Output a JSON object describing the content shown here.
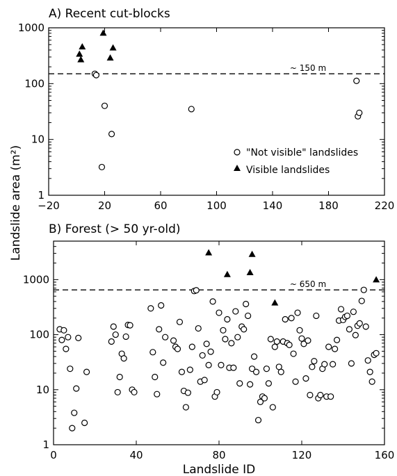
{
  "figure": {
    "ylabel": "Landslide area (m²)",
    "xlabel": "Landslide ID"
  },
  "chart_data": [
    {
      "type": "scatter",
      "title": "A) Recent cut-blocks",
      "yscale": "log",
      "xlim": [
        -20,
        220
      ],
      "ylim": [
        1,
        1000
      ],
      "xticks": [
        -20,
        20,
        60,
        100,
        140,
        180,
        220
      ],
      "xtick_labels": [
        "−20",
        "20",
        "60",
        "100",
        "140",
        "180",
        "220"
      ],
      "yticks": [
        1,
        10,
        100,
        1000
      ],
      "ytick_labels": [
        "1",
        "10",
        "100",
        "1000"
      ],
      "threshold": {
        "y": 150,
        "label": "~ 150 m"
      },
      "legend": {
        "position": "lower-right"
      },
      "series": [
        {
          "name": "\"Not visible\" landslides",
          "marker": "open-circle",
          "points": [
            [
              13,
              150
            ],
            [
              14,
              142
            ],
            [
              18,
              3.2
            ],
            [
              20,
              40
            ],
            [
              25,
              12.5
            ],
            [
              82,
              35
            ],
            [
              200,
              112
            ],
            [
              201,
              26
            ],
            [
              202,
              30
            ]
          ]
        },
        {
          "name": "Visible landslides",
          "marker": "filled-triangle",
          "points": [
            [
              2,
              340
            ],
            [
              3,
              270
            ],
            [
              4,
              460
            ],
            [
              19,
              810
            ],
            [
              24,
              290
            ],
            [
              26,
              440
            ]
          ]
        }
      ]
    },
    {
      "type": "scatter",
      "title": "B) Forest (> 50 yr-old)",
      "yscale": "log",
      "xlim": [
        0,
        160
      ],
      "ylim": [
        1,
        5000
      ],
      "xticks": [
        0,
        40,
        80,
        120,
        160
      ],
      "xtick_labels": [
        "0",
        "40",
        "80",
        "120",
        "160"
      ],
      "yticks": [
        1,
        10,
        100,
        1000
      ],
      "ytick_labels": [
        "1",
        "10",
        "100",
        "1000"
      ],
      "threshold": {
        "y": 650,
        "label": "~ 650 m"
      },
      "series": [
        {
          "name": "\"Not visible\" landslides",
          "marker": "open-circle",
          "points": [
            [
              3,
              125
            ],
            [
              4,
              80
            ],
            [
              5,
              120
            ],
            [
              6,
              55
            ],
            [
              7,
              90
            ],
            [
              8,
              24
            ],
            [
              9,
              2
            ],
            [
              10,
              3.8
            ],
            [
              11,
              10.5
            ],
            [
              12,
              87
            ],
            [
              15,
              2.5
            ],
            [
              16,
              21
            ],
            [
              28,
              75
            ],
            [
              29,
              140
            ],
            [
              30,
              100
            ],
            [
              31,
              9
            ],
            [
              32,
              17
            ],
            [
              33,
              45
            ],
            [
              34,
              37
            ],
            [
              35,
              92
            ],
            [
              36,
              150
            ],
            [
              37,
              148
            ],
            [
              38,
              10
            ],
            [
              39,
              9
            ],
            [
              47,
              300
            ],
            [
              48,
              48
            ],
            [
              49,
              17
            ],
            [
              50,
              8.3
            ],
            [
              51,
              125
            ],
            [
              52,
              340
            ],
            [
              53,
              31
            ],
            [
              54,
              90
            ],
            [
              58,
              78
            ],
            [
              59,
              60
            ],
            [
              60,
              55
            ],
            [
              61,
              170
            ],
            [
              62,
              21
            ],
            [
              63,
              9.5
            ],
            [
              64,
              4.8
            ],
            [
              65,
              8.8
            ],
            [
              66,
              23
            ],
            [
              67,
              60
            ],
            [
              68,
              620
            ],
            [
              69,
              640
            ],
            [
              70,
              130
            ],
            [
              71,
              14
            ],
            [
              72,
              42
            ],
            [
              73,
              15
            ],
            [
              74,
              68
            ],
            [
              75,
              28
            ],
            [
              76,
              49
            ],
            [
              77,
              400
            ],
            [
              78,
              7.5
            ],
            [
              79,
              9
            ],
            [
              80,
              250
            ],
            [
              81,
              28
            ],
            [
              82,
              120
            ],
            [
              83,
              83
            ],
            [
              84,
              190
            ],
            [
              85,
              25
            ],
            [
              86,
              70
            ],
            [
              87,
              25
            ],
            [
              88,
              265
            ],
            [
              89,
              90
            ],
            [
              90,
              13
            ],
            [
              91,
              140
            ],
            [
              92,
              125
            ],
            [
              93,
              360
            ],
            [
              94,
              220
            ],
            [
              95,
              12.5
            ],
            [
              96,
              24
            ],
            [
              97,
              40
            ],
            [
              98,
              21
            ],
            [
              99,
              2.8
            ],
            [
              100,
              6
            ],
            [
              101,
              7.5
            ],
            [
              102,
              7
            ],
            [
              103,
              24
            ],
            [
              104,
              13
            ],
            [
              105,
              83
            ],
            [
              106,
              4.8
            ],
            [
              107,
              60
            ],
            [
              108,
              75
            ],
            [
              109,
              26
            ],
            [
              110,
              21
            ],
            [
              111,
              75
            ],
            [
              112,
              190
            ],
            [
              113,
              70
            ],
            [
              114,
              65
            ],
            [
              115,
              200
            ],
            [
              116,
              45
            ],
            [
              117,
              14
            ],
            [
              118,
              250
            ],
            [
              119,
              120
            ],
            [
              120,
              85
            ],
            [
              121,
              68
            ],
            [
              122,
              16
            ],
            [
              123,
              78
            ],
            [
              124,
              8
            ],
            [
              125,
              26
            ],
            [
              126,
              33
            ],
            [
              127,
              220
            ],
            [
              128,
              7
            ],
            [
              129,
              8
            ],
            [
              130,
              24
            ],
            [
              131,
              29
            ],
            [
              132,
              7.5
            ],
            [
              133,
              60
            ],
            [
              134,
              7.5
            ],
            [
              135,
              29
            ],
            [
              136,
              55
            ],
            [
              137,
              80
            ],
            [
              138,
              180
            ],
            [
              139,
              290
            ],
            [
              140,
              185
            ],
            [
              141,
              210
            ],
            [
              142,
              220
            ],
            [
              143,
              125
            ],
            [
              144,
              30
            ],
            [
              145,
              260
            ],
            [
              146,
              98
            ],
            [
              147,
              145
            ],
            [
              148,
              160
            ],
            [
              149,
              410
            ],
            [
              150,
              650
            ],
            [
              151,
              140
            ],
            [
              152,
              34
            ],
            [
              153,
              21
            ],
            [
              154,
              14
            ],
            [
              155,
              43
            ],
            [
              156,
              46
            ]
          ]
        },
        {
          "name": "Visible landslides",
          "marker": "filled-triangle",
          "points": [
            [
              75,
              3100
            ],
            [
              84,
              1250
            ],
            [
              95,
              1350
            ],
            [
              96,
              2900
            ],
            [
              107,
              380
            ],
            [
              156,
              1000
            ]
          ]
        }
      ]
    }
  ]
}
